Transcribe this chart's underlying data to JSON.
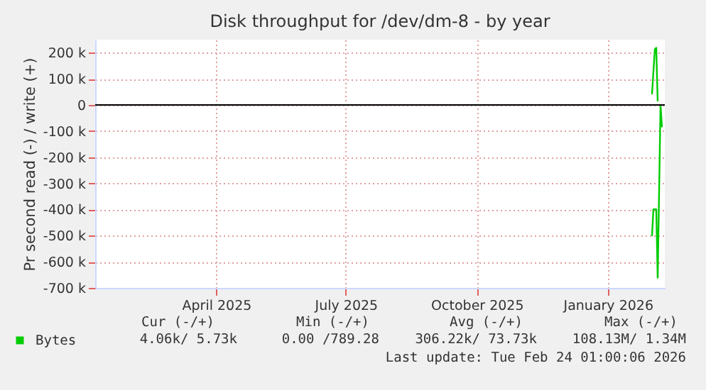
{
  "chart_data": {
    "type": "line",
    "title": "Disk throughput for /dev/dm-8 - by year",
    "ylabel": "Pr second read (-) / write (+)",
    "xlim": [
      "2025-01-20",
      "2026-02-24"
    ],
    "xticks": [
      {
        "value": "2025-04-15",
        "label": "April 2025"
      },
      {
        "value": "2025-07-15",
        "label": "July 2025"
      },
      {
        "value": "2025-10-15",
        "label": "October 2025"
      },
      {
        "value": "2026-01-15",
        "label": "January 2026"
      }
    ],
    "ylim": [
      -700000,
      250000
    ],
    "yticks": [
      {
        "value": 200000,
        "label": "200 k"
      },
      {
        "value": 100000,
        "label": "100 k"
      },
      0,
      {
        "value": -100000,
        "label": "-100 k"
      },
      {
        "value": -200000,
        "label": "-200 k"
      },
      {
        "value": -300000,
        "label": "-300 k"
      },
      {
        "value": -400000,
        "label": "-400 k"
      },
      {
        "value": -500000,
        "label": "-500 k"
      },
      {
        "value": -600000,
        "label": "-600 k"
      },
      {
        "value": -700000,
        "label": "-700 k"
      }
    ],
    "series": [
      {
        "name": "Bytes",
        "color": "#00cc00",
        "x": [
          "2026-02-15",
          "2026-02-17",
          "2026-02-18",
          "2026-02-19"
        ],
        "values": [
          41000,
          214000,
          219000,
          14000
        ]
      },
      {
        "color": "#00cc00",
        "x": [
          "2026-02-15",
          "2026-02-16",
          "2026-02-18",
          "2026-02-19",
          "2026-02-21",
          "2026-02-22"
        ],
        "values": [
          -502000,
          -399000,
          -399000,
          -661000,
          0,
          -85000
        ]
      }
    ],
    "ref_lines": [
      {
        "axis": "y",
        "value": 0,
        "color": "#000000"
      }
    ],
    "grid": true,
    "legend": "bottom left",
    "annotations": [
      "Cur (-/+)",
      "Min (-/+)",
      "Avg (-/+)",
      "Max (-/+)",
      "4.06k/  5.73k",
      "0.00 /789.28",
      "306.22k/ 73.73k",
      "108.13M/  1.34M",
      "Last update: Tue Feb 24 01:00:06 2026"
    ]
  }
}
